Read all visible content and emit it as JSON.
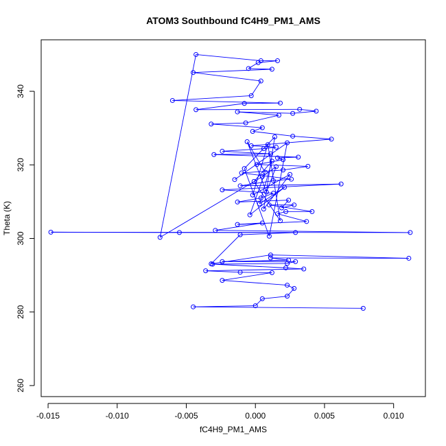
{
  "chart_data": {
    "type": "scatter",
    "title": "ATOM3 Southbound fC4H9_PM1_AMS",
    "xlabel": "fC4H9_PM1_AMS",
    "ylabel": "Theta (K)",
    "xlim": [
      -0.0155,
      0.0123
    ],
    "ylim": [
      257,
      354
    ],
    "xticks": [
      -0.015,
      -0.01,
      -0.005,
      0.0,
      0.005,
      0.01
    ],
    "xtick_labels": [
      "-0.015",
      "-0.010",
      "-0.005",
      "0.000",
      "0.005",
      "0.010"
    ],
    "yticks": [
      260,
      280,
      300,
      320,
      340
    ],
    "ytick_labels": [
      "260",
      "280",
      "300",
      "320",
      "340"
    ],
    "connected": true,
    "marker": "open-circle",
    "series_color": "#0000ff",
    "grid": false,
    "points": [
      [
        0.0078,
        281.0
      ],
      [
        -0.0045,
        281.4
      ],
      [
        0.0,
        281.7
      ],
      [
        0.0005,
        283.6
      ],
      [
        0.0023,
        284.3
      ],
      [
        0.0028,
        286.4
      ],
      [
        0.0023,
        287.3
      ],
      [
        -0.0024,
        288.6
      ],
      [
        0.0012,
        290.7
      ],
      [
        -0.0011,
        290.8
      ],
      [
        -0.0036,
        291.2
      ],
      [
        0.0035,
        291.7
      ],
      [
        0.0022,
        292.0
      ],
      [
        -0.0031,
        293.0
      ],
      [
        0.0023,
        293.2
      ],
      [
        0.0029,
        293.7
      ],
      [
        -0.0024,
        293.7
      ],
      [
        0.0024,
        294.1
      ],
      [
        0.0011,
        294.7
      ],
      [
        0.0111,
        294.6
      ],
      [
        0.0011,
        295.5
      ],
      [
        -0.0032,
        293.1
      ],
      [
        -0.0011,
        301.0
      ],
      [
        0.0029,
        301.6
      ],
      [
        -0.0055,
        301.6
      ],
      [
        -0.0148,
        301.7
      ],
      [
        0.0112,
        301.6
      ],
      [
        -0.0029,
        302.2
      ],
      [
        0.0005,
        304.2
      ],
      [
        -0.0013,
        303.8
      ],
      [
        0.0037,
        304.6
      ],
      [
        0.0016,
        306.7
      ],
      [
        0.0022,
        307.3
      ],
      [
        0.0041,
        307.3
      ],
      [
        0.001,
        309.1
      ],
      [
        0.0028,
        309.1
      ],
      [
        0.0019,
        308.3
      ],
      [
        0.0024,
        310.4
      ],
      [
        -0.0013,
        309.9
      ],
      [
        0.0004,
        311.0
      ],
      [
        0.0013,
        312.3
      ],
      [
        -0.0024,
        313.2
      ],
      [
        0.0062,
        314.8
      ],
      [
        -0.0011,
        314.3
      ],
      [
        0.0013,
        315.7
      ],
      [
        0.0026,
        316.1
      ],
      [
        -0.001,
        317.8
      ],
      [
        0.002,
        318.6
      ],
      [
        0.0038,
        319.6
      ],
      [
        0.0001,
        320.1
      ],
      [
        0.002,
        321.4
      ],
      [
        0.0016,
        321.9
      ],
      [
        0.0031,
        322.1
      ],
      [
        -0.003,
        322.8
      ],
      [
        0.0011,
        323.0
      ],
      [
        -0.0024,
        323.7
      ],
      [
        0.0006,
        324.4
      ],
      [
        0.0015,
        324.8
      ],
      [
        -0.0003,
        325.2
      ],
      [
        0.0055,
        327.0
      ],
      [
        0.0027,
        327.8
      ],
      [
        -0.0002,
        329.1
      ],
      [
        0.0005,
        330.1
      ],
      [
        -0.0032,
        331.1
      ],
      [
        -0.0007,
        331.4
      ],
      [
        0.0017,
        333.5
      ],
      [
        -0.0013,
        334.4
      ],
      [
        0.0027,
        334.0
      ],
      [
        0.0044,
        334.6
      ],
      [
        0.0032,
        335.1
      ],
      [
        -0.0043,
        335.0
      ],
      [
        -0.0008,
        336.7
      ],
      [
        0.0018,
        336.8
      ],
      [
        -0.006,
        337.5
      ],
      [
        -0.0003,
        338.8
      ],
      [
        0.0004,
        342.8
      ],
      [
        -0.0045,
        345.1
      ],
      [
        0.0012,
        346.0
      ],
      [
        -0.0005,
        346.2
      ],
      [
        0.0002,
        347.8
      ],
      [
        0.0016,
        348.3
      ],
      [
        0.0004,
        348.3
      ],
      [
        -0.0043,
        350.0
      ],
      [
        -0.0069,
        300.3
      ],
      [
        0.0005,
        316.8
      ],
      [
        0.0015,
        319.5
      ],
      [
        0.0008,
        312.6
      ],
      [
        -0.0006,
        326.3
      ],
      [
        0.0007,
        318.0
      ],
      [
        -0.0004,
        306.4
      ],
      [
        0.0021,
        313.9
      ],
      [
        0.0003,
        309.4
      ],
      [
        0.0012,
        321.0
      ],
      [
        -0.0001,
        315.5
      ],
      [
        0.0018,
        304.8
      ],
      [
        0.0009,
        325.5
      ],
      [
        -0.0002,
        311.8
      ],
      [
        0.0025,
        317.4
      ],
      [
        0.0006,
        308.0
      ],
      [
        0.0014,
        327.6
      ],
      [
        -0.0008,
        319.0
      ],
      [
        0.001,
        300.6
      ],
      [
        0.0023,
        326.0
      ],
      [
        -0.0015,
        316.0
      ]
    ]
  }
}
